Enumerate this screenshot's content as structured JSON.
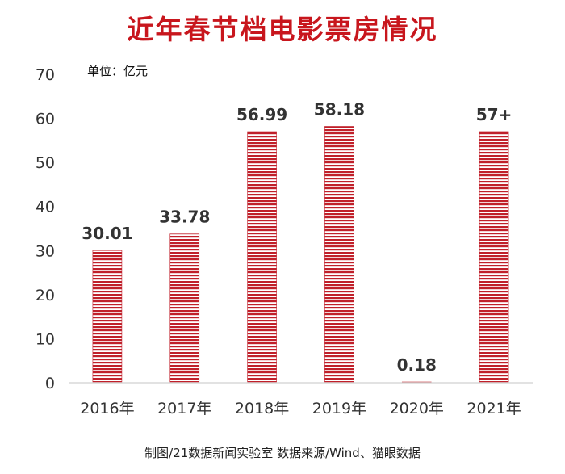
{
  "chart_data": {
    "type": "bar",
    "title": "近年春节档电影票房情况",
    "unit": "单位：亿元",
    "categories": [
      "2016年",
      "2017年",
      "2018年",
      "2019年",
      "2020年",
      "2021年"
    ],
    "values": [
      30.01,
      33.78,
      56.99,
      58.18,
      0.18,
      57
    ],
    "data_labels": [
      "30.01",
      "33.78",
      "56.99",
      "58.18",
      "0.18",
      "57+"
    ],
    "ylim": [
      0,
      70
    ],
    "yticks": [
      "0",
      "10",
      "20",
      "30",
      "40",
      "50",
      "60",
      "70"
    ],
    "grid": false,
    "legend": "none",
    "bar_color": "#c0202a",
    "bar_stripe_color": "#ffffff",
    "source": "制图/21数据新闻实验室  数据来源/Wind、猫眼数据"
  }
}
